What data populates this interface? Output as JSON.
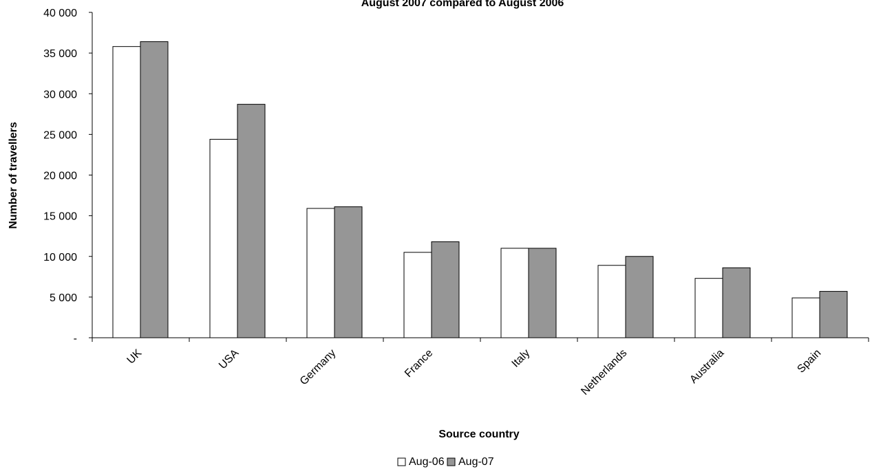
{
  "chart_data": {
    "type": "bar",
    "title": "August 2007 compared to August 2006",
    "xlabel": "Source country",
    "ylabel": "Number of travellers",
    "categories": [
      "UK",
      "USA",
      "Germany",
      "France",
      "Italy",
      "Netherlands",
      "Australia",
      "Spain"
    ],
    "series": [
      {
        "name": "Aug-06",
        "color": "#ffffff",
        "values": [
          35800,
          24400,
          15900,
          10500,
          11000,
          8900,
          7300,
          4900
        ]
      },
      {
        "name": "Aug-07",
        "color": "#969696",
        "values": [
          36400,
          28700,
          16100,
          11800,
          11000,
          10000,
          8600,
          5700
        ]
      }
    ],
    "ylim": [
      0,
      40000
    ],
    "yticks": [
      0,
      5000,
      10000,
      15000,
      20000,
      25000,
      30000,
      35000,
      40000
    ],
    "ytick_labels": [
      "-",
      "5 000",
      "10 000",
      "15 000",
      "20 000",
      "25 000",
      "30 000",
      "35 000",
      "40 000"
    ],
    "grid": false,
    "legend_position": "bottom-center"
  }
}
